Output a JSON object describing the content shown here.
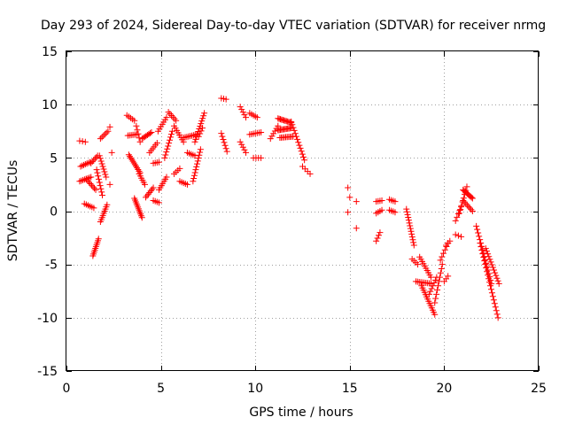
{
  "chart_data": {
    "type": "scatter",
    "title": "Day 293 of 2024, Sidereal Day-to-day VTEC variation (SDTVAR) for receiver nrmg",
    "xlabel": "GPS time / hours",
    "ylabel": "SDTVAR / TECUs",
    "xlim": [
      0,
      25
    ],
    "ylim": [
      -15,
      15
    ],
    "xticks": [
      0,
      5,
      10,
      15,
      20,
      25
    ],
    "yticks": [
      -15,
      -10,
      -5,
      0,
      5,
      10,
      15
    ],
    "xtick_labels": [
      "0",
      "5",
      "10",
      "15",
      "20",
      "25"
    ],
    "ytick_labels": [
      "-15",
      "-10",
      "-5",
      "0",
      "5",
      "10",
      "15"
    ],
    "grid": true,
    "marker": "plus",
    "series": [
      {
        "name": "SDTVAR",
        "color": "#ff0000",
        "segments": [
          {
            "x0": 0.7,
            "x1": 1.0,
            "y0": 6.6,
            "y1": 6.5,
            "n": 3
          },
          {
            "x0": 0.7,
            "x1": 1.3,
            "y0": 2.8,
            "y1": 3.2,
            "n": 8
          },
          {
            "x0": 0.75,
            "x1": 1.25,
            "y0": 4.2,
            "y1": 4.6,
            "n": 7
          },
          {
            "x0": 0.95,
            "x1": 1.45,
            "y0": 0.7,
            "y1": 0.3,
            "n": 6
          },
          {
            "x0": 1.3,
            "x1": 1.65,
            "y0": 4.5,
            "y1": 5.2,
            "n": 6
          },
          {
            "x0": 1.05,
            "x1": 1.55,
            "y0": 3.0,
            "y1": 2.0,
            "n": 8
          },
          {
            "x0": 1.4,
            "x1": 1.7,
            "y0": -4.2,
            "y1": -2.6,
            "n": 10
          },
          {
            "x0": 1.6,
            "x1": 1.9,
            "y0": 3.9,
            "y1": 1.5,
            "n": 9
          },
          {
            "x0": 1.75,
            "x1": 2.1,
            "y0": 5.2,
            "y1": 3.2,
            "n": 9
          },
          {
            "x0": 1.8,
            "x1": 2.15,
            "y0": -1.0,
            "y1": 0.6,
            "n": 9
          },
          {
            "x0": 1.8,
            "x1": 2.2,
            "y0": 6.8,
            "y1": 7.5,
            "n": 6
          },
          {
            "x0": 2.3,
            "x1": 2.4,
            "y0": 7.9,
            "y1": 5.5,
            "n": 2
          },
          {
            "x0": 2.3,
            "x1": 2.3,
            "y0": 2.5,
            "y1": 2.5,
            "n": 1
          },
          {
            "x0": 3.2,
            "x1": 3.6,
            "y0": 9.0,
            "y1": 8.5,
            "n": 5
          },
          {
            "x0": 3.25,
            "x1": 3.7,
            "y0": 7.1,
            "y1": 7.2,
            "n": 6
          },
          {
            "x0": 3.3,
            "x1": 3.9,
            "y0": 5.3,
            "y1": 3.6,
            "n": 12
          },
          {
            "x0": 3.6,
            "x1": 4.0,
            "y0": 1.2,
            "y1": -0.6,
            "n": 12
          },
          {
            "x0": 3.7,
            "x1": 3.9,
            "y0": 8.0,
            "y1": 6.5,
            "n": 5
          },
          {
            "x0": 3.85,
            "x1": 4.15,
            "y0": 3.5,
            "y1": 2.5,
            "n": 6
          },
          {
            "x0": 4.0,
            "x1": 4.5,
            "y0": 6.8,
            "y1": 7.4,
            "n": 8
          },
          {
            "x0": 4.2,
            "x1": 4.6,
            "y0": 1.3,
            "y1": 2.2,
            "n": 7
          },
          {
            "x0": 4.4,
            "x1": 4.8,
            "y0": 5.5,
            "y1": 6.4,
            "n": 6
          },
          {
            "x0": 4.6,
            "x1": 4.9,
            "y0": 4.5,
            "y1": 4.6,
            "n": 4
          },
          {
            "x0": 4.6,
            "x1": 4.9,
            "y0": 1.0,
            "y1": 0.8,
            "n": 4
          },
          {
            "x0": 4.85,
            "x1": 5.3,
            "y0": 7.5,
            "y1": 8.8,
            "n": 7
          },
          {
            "x0": 4.9,
            "x1": 5.3,
            "y0": 2.0,
            "y1": 3.2,
            "n": 7
          },
          {
            "x0": 5.2,
            "x1": 5.6,
            "y0": 5.0,
            "y1": 7.5,
            "n": 10
          },
          {
            "x0": 5.4,
            "x1": 5.8,
            "y0": 9.3,
            "y1": 8.5,
            "n": 6
          },
          {
            "x0": 5.7,
            "x1": 6.0,
            "y0": 3.5,
            "y1": 4.0,
            "n": 4
          },
          {
            "x0": 5.7,
            "x1": 6.2,
            "y0": 8.0,
            "y1": 6.5,
            "n": 8
          },
          {
            "x0": 6.0,
            "x1": 6.4,
            "y0": 2.8,
            "y1": 2.5,
            "n": 5
          },
          {
            "x0": 6.2,
            "x1": 6.9,
            "y0": 6.9,
            "y1": 7.2,
            "n": 9
          },
          {
            "x0": 6.4,
            "x1": 6.8,
            "y0": 5.5,
            "y1": 5.2,
            "n": 5
          },
          {
            "x0": 6.7,
            "x1": 7.1,
            "y0": 2.8,
            "y1": 5.8,
            "n": 12
          },
          {
            "x0": 6.8,
            "x1": 7.3,
            "y0": 6.5,
            "y1": 9.2,
            "n": 12
          },
          {
            "x0": 7.0,
            "x1": 7.2,
            "y0": 7.0,
            "y1": 7.8,
            "n": 4
          },
          {
            "x0": 8.2,
            "x1": 8.45,
            "y0": 10.6,
            "y1": 10.5,
            "n": 3
          },
          {
            "x0": 8.2,
            "x1": 8.5,
            "y0": 7.3,
            "y1": 5.6,
            "n": 7
          },
          {
            "x0": 9.2,
            "x1": 9.5,
            "y0": 9.8,
            "y1": 8.8,
            "n": 5
          },
          {
            "x0": 9.2,
            "x1": 9.5,
            "y0": 6.5,
            "y1": 5.5,
            "n": 5
          },
          {
            "x0": 9.7,
            "x1": 10.1,
            "y0": 9.2,
            "y1": 8.8,
            "n": 5
          },
          {
            "x0": 9.7,
            "x1": 10.3,
            "y0": 7.2,
            "y1": 7.4,
            "n": 7
          },
          {
            "x0": 9.9,
            "x1": 10.3,
            "y0": 5.0,
            "y1": 5.0,
            "n": 4
          },
          {
            "x0": 10.8,
            "x1": 11.2,
            "y0": 6.8,
            "y1": 8.0,
            "n": 6
          },
          {
            "x0": 11.2,
            "x1": 11.9,
            "y0": 8.7,
            "y1": 8.3,
            "n": 12
          },
          {
            "x0": 11.2,
            "x1": 11.9,
            "y0": 7.6,
            "y1": 7.8,
            "n": 12
          },
          {
            "x0": 11.3,
            "x1": 12.0,
            "y0": 6.9,
            "y1": 7.0,
            "n": 10
          },
          {
            "x0": 11.9,
            "x1": 12.6,
            "y0": 8.4,
            "y1": 4.8,
            "n": 14
          },
          {
            "x0": 12.5,
            "x1": 12.9,
            "y0": 4.2,
            "y1": 3.5,
            "n": 4
          },
          {
            "x0": 14.9,
            "x1": 15.0,
            "y0": 2.2,
            "y1": 1.3,
            "n": 2
          },
          {
            "x0": 14.9,
            "x1": 14.9,
            "y0": -0.1,
            "y1": -0.1,
            "n": 1
          },
          {
            "x0": 15.35,
            "x1": 15.35,
            "y0": 0.9,
            "y1": 0.9,
            "n": 1
          },
          {
            "x0": 15.35,
            "x1": 15.35,
            "y0": -1.6,
            "y1": -1.6,
            "n": 1
          },
          {
            "x0": 16.4,
            "x1": 16.7,
            "y0": 0.9,
            "y1": 1.0,
            "n": 4
          },
          {
            "x0": 16.4,
            "x1": 16.7,
            "y0": -0.2,
            "y1": 0.1,
            "n": 4
          },
          {
            "x0": 16.4,
            "x1": 16.6,
            "y0": -2.8,
            "y1": -2.0,
            "n": 4
          },
          {
            "x0": 17.1,
            "x1": 17.4,
            "y0": 1.1,
            "y1": 0.9,
            "n": 4
          },
          {
            "x0": 17.1,
            "x1": 17.4,
            "y0": 0.1,
            "y1": -0.1,
            "n": 4
          },
          {
            "x0": 18.0,
            "x1": 18.4,
            "y0": 0.2,
            "y1": -3.2,
            "n": 14
          },
          {
            "x0": 18.3,
            "x1": 18.6,
            "y0": -4.5,
            "y1": -5.0,
            "n": 4
          },
          {
            "x0": 18.5,
            "x1": 19.3,
            "y0": -6.6,
            "y1": -6.8,
            "n": 10
          },
          {
            "x0": 18.7,
            "x1": 19.3,
            "y0": -4.3,
            "y1": -6.2,
            "n": 10
          },
          {
            "x0": 18.8,
            "x1": 19.5,
            "y0": -7.0,
            "y1": -9.7,
            "n": 14
          },
          {
            "x0": 19.2,
            "x1": 19.6,
            "y0": -7.8,
            "y1": -6.2,
            "n": 7
          },
          {
            "x0": 19.5,
            "x1": 19.9,
            "y0": -8.6,
            "y1": -5.0,
            "n": 10
          },
          {
            "x0": 19.8,
            "x1": 20.2,
            "y0": -4.6,
            "y1": -3.0,
            "n": 6
          },
          {
            "x0": 20.0,
            "x1": 20.2,
            "y0": -6.6,
            "y1": -6.1,
            "n": 3
          },
          {
            "x0": 20.1,
            "x1": 20.3,
            "y0": -3.2,
            "y1": -2.8,
            "n": 3
          },
          {
            "x0": 20.6,
            "x1": 20.9,
            "y0": -0.9,
            "y1": 0.4,
            "n": 5
          },
          {
            "x0": 20.6,
            "x1": 20.9,
            "y0": -2.2,
            "y1": -2.4,
            "n": 3
          },
          {
            "x0": 20.8,
            "x1": 21.2,
            "y0": -0.2,
            "y1": 2.3,
            "n": 8
          },
          {
            "x0": 21.0,
            "x1": 21.5,
            "y0": 2.0,
            "y1": 1.2,
            "n": 10
          },
          {
            "x0": 21.0,
            "x1": 21.5,
            "y0": 1.0,
            "y1": 0.0,
            "n": 8
          },
          {
            "x0": 21.7,
            "x1": 22.5,
            "y0": -1.4,
            "y1": -6.8,
            "n": 18
          },
          {
            "x0": 21.9,
            "x1": 22.85,
            "y0": -3.0,
            "y1": -10.0,
            "n": 22
          },
          {
            "x0": 22.2,
            "x1": 22.9,
            "y0": -3.5,
            "y1": -6.8,
            "n": 14
          }
        ]
      }
    ]
  }
}
